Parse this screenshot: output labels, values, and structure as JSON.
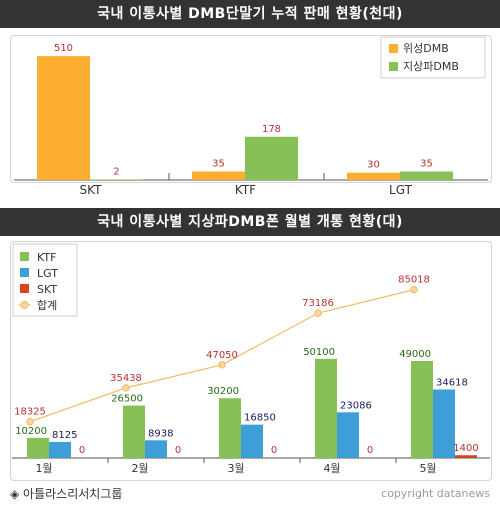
{
  "chart_data": [
    {
      "type": "bar",
      "title": "국내 이통사별 DMB단말기 누적 판매 현황(천대)",
      "categories": [
        "SKT",
        "KTF",
        "LGT"
      ],
      "series": [
        {
          "name": "위성DMB",
          "values": [
            510,
            35,
            30
          ],
          "color": "#fbae30"
        },
        {
          "name": "지상파DMB",
          "values": [
            2,
            178,
            35
          ],
          "color": "#86c057"
        }
      ],
      "ylim": [
        0,
        560
      ],
      "grid": false,
      "legend": "top-right",
      "label_color": "#b83232"
    },
    {
      "type": "bar",
      "title": "국내 이통사별 지상파DMB폰 월별 개통 현황(대)",
      "categories": [
        "1월",
        "2월",
        "3월",
        "4월",
        "5월"
      ],
      "series": [
        {
          "name": "KTF",
          "values": [
            10200,
            26500,
            30200,
            50100,
            49000
          ],
          "color": "#86c057",
          "label_color": "#2a6a1a"
        },
        {
          "name": "LGT",
          "values": [
            8125,
            8938,
            16850,
            23086,
            34618
          ],
          "color": "#3e9ed8",
          "label_color": "#1a1a66"
        },
        {
          "name": "SKT",
          "values": [
            0,
            0,
            0,
            0,
            1400
          ],
          "color": "#d9441f",
          "label_color": "#b83232"
        }
      ],
      "line_series": {
        "name": "합계",
        "type": "line",
        "values": [
          18325,
          35438,
          47050,
          73186,
          85018
        ],
        "color": "#f7b860",
        "label_color": "#b83232"
      },
      "ylim": [
        0,
        97000
      ],
      "grid": false,
      "legend": "top-left"
    }
  ],
  "footer": {
    "source": "◈ 아틀라스리서치그룹",
    "copyright": "copyright datanews"
  }
}
